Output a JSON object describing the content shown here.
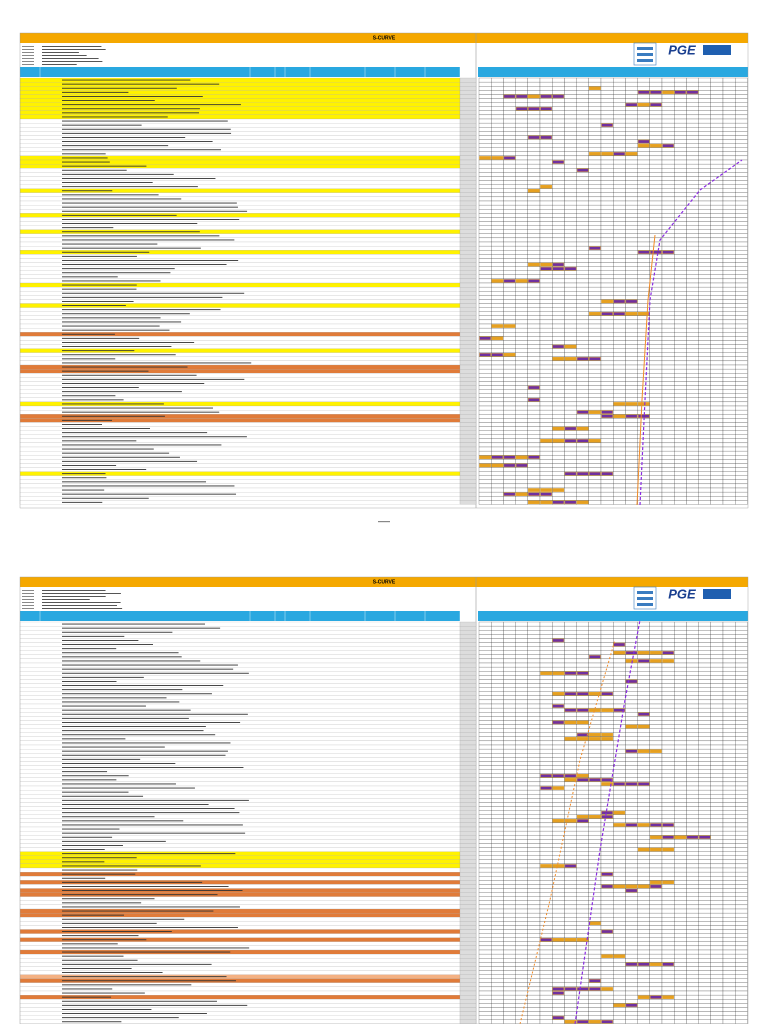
{
  "pages": [
    {
      "title": "S-CURVE"
    },
    {
      "title": "S-CURVE"
    }
  ],
  "logo": "PGE"
}
